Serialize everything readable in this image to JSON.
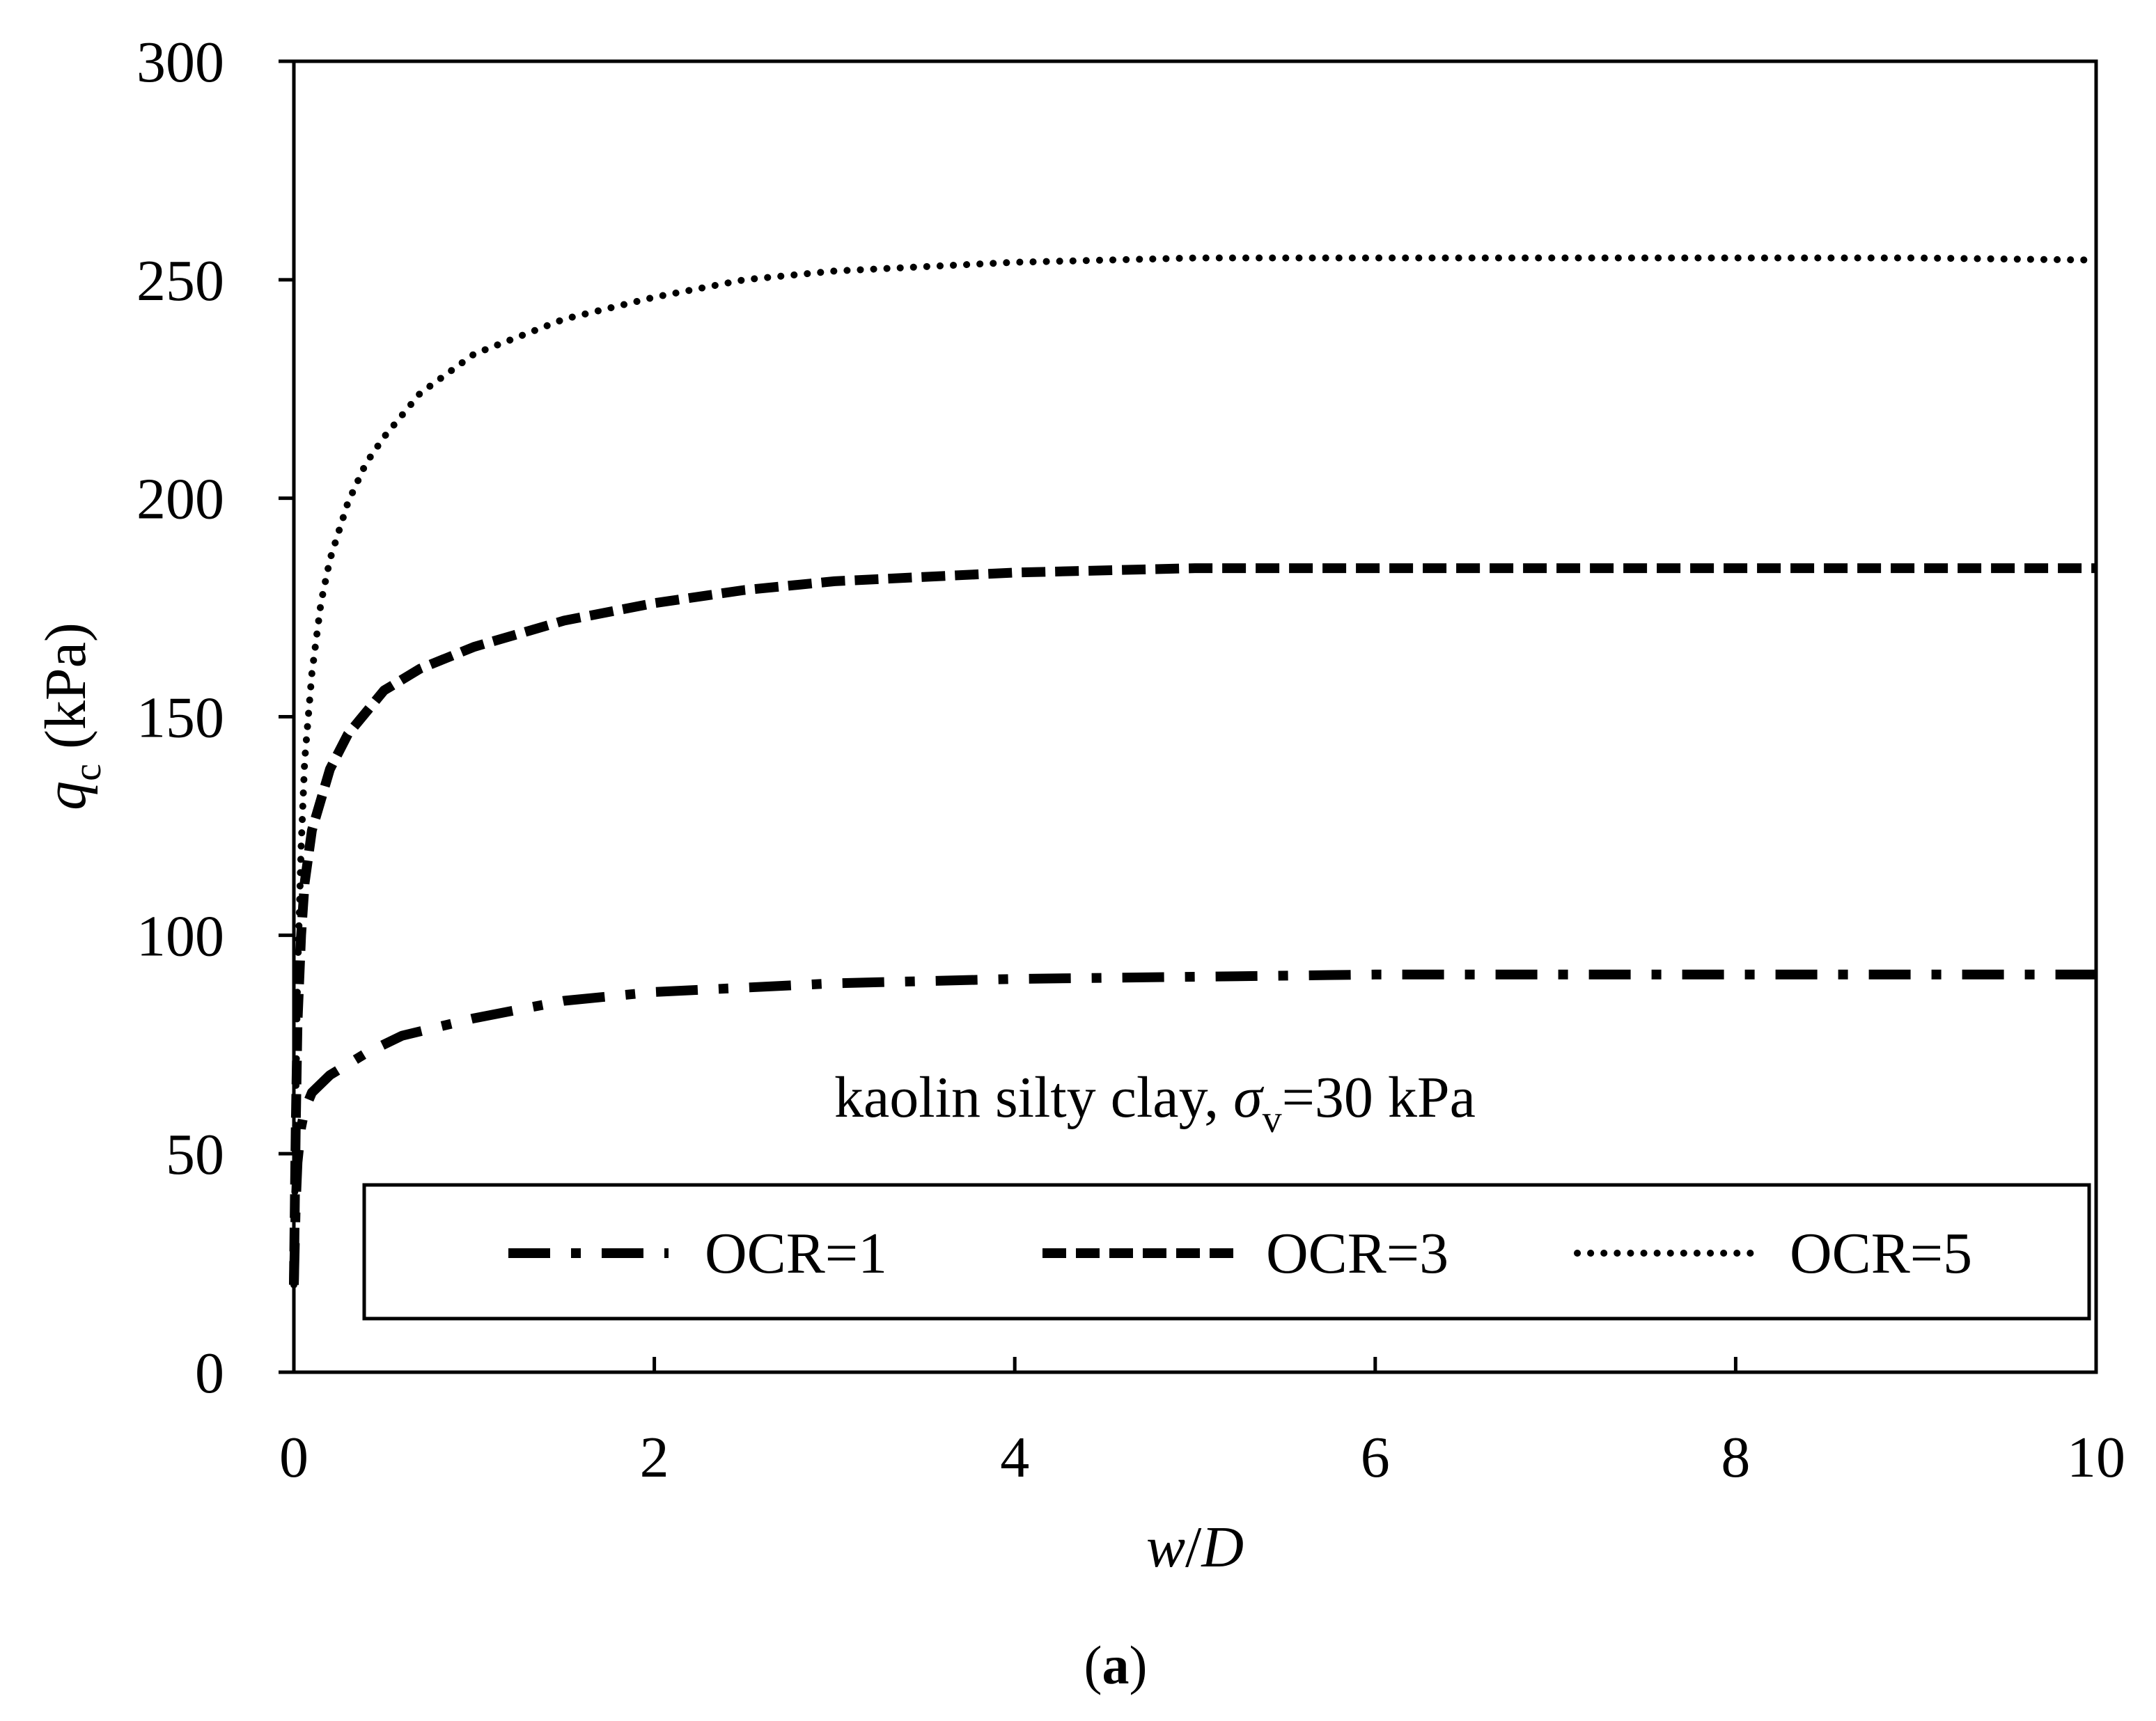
{
  "chart_data": {
    "type": "line",
    "title": "",
    "xlabel": {
      "italic": "w",
      "plain": "/",
      "italic2": "D"
    },
    "ylabel": {
      "italic": "q",
      "sub": "c",
      "plain": " (kPa)"
    },
    "xlim": [
      0,
      10
    ],
    "ylim": [
      0,
      300
    ],
    "xticks": [
      "0",
      "2",
      "4",
      "6",
      "8",
      "10"
    ],
    "yticks": [
      "0",
      "50",
      "100",
      "150",
      "200",
      "250",
      "300"
    ],
    "annotation": {
      "prefix": "kaolin silty clay, ",
      "sym": "σ",
      "sub": "v",
      "suffix": "=30 kPa"
    },
    "legend_position": "bottom",
    "caption": {
      "open": "(",
      "letter": "a",
      "close": ")"
    },
    "series": [
      {
        "name": "OCR=1",
        "style": "dash-dot",
        "x": [
          0,
          0.01,
          0.02,
          0.04,
          0.06,
          0.1,
          0.2,
          0.4,
          0.6,
          0.8,
          1.0,
          1.5,
          2.0,
          3.0,
          4.0,
          5.0,
          6.0,
          7.0,
          8.0,
          9.0,
          10.0
        ],
        "y": [
          20,
          38,
          48,
          56,
          60,
          64,
          68,
          73,
          77,
          79,
          81,
          85,
          87,
          89,
          90,
          90.5,
          91,
          91,
          91,
          91,
          91
        ]
      },
      {
        "name": "OCR=3",
        "style": "dashed",
        "x": [
          0,
          0.01,
          0.02,
          0.04,
          0.06,
          0.1,
          0.2,
          0.3,
          0.5,
          0.7,
          1.0,
          1.5,
          2.0,
          2.5,
          3.0,
          4.0,
          5.0,
          6.0,
          7.0,
          8.0,
          9.0,
          10.0
        ],
        "y": [
          20,
          55,
          80,
          100,
          112,
          124,
          138,
          146,
          156,
          161,
          166,
          172,
          176,
          179,
          181,
          183,
          184,
          184,
          184,
          184,
          184,
          184
        ]
      },
      {
        "name": "OCR=5",
        "style": "dotted",
        "x": [
          0,
          0.01,
          0.02,
          0.04,
          0.06,
          0.1,
          0.15,
          0.2,
          0.3,
          0.4,
          0.5,
          0.7,
          1.0,
          1.5,
          2.0,
          2.5,
          3.0,
          4.0,
          5.0,
          6.0,
          7.0,
          8.0,
          9.0,
          10.0
        ],
        "y": [
          20,
          60,
          90,
          120,
          140,
          160,
          176,
          186,
          199,
          208,
          214,
          224,
          233,
          241,
          246,
          250,
          252,
          254,
          255,
          255,
          255,
          255,
          255,
          254.5
        ]
      }
    ]
  }
}
